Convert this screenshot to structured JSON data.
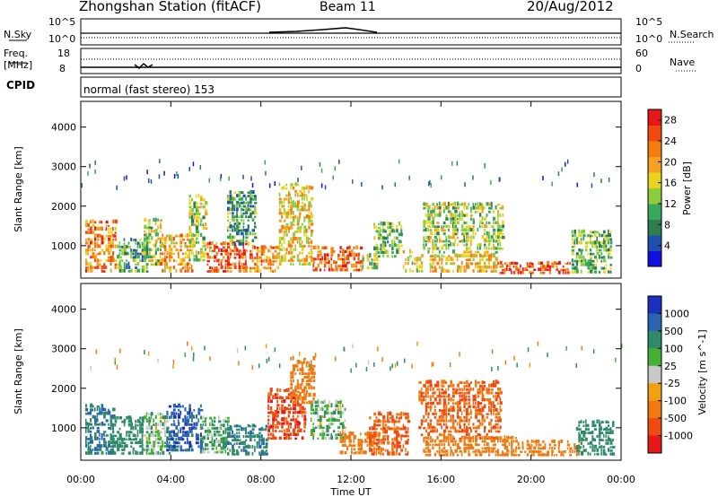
{
  "header": {
    "station": "Zhongshan Station (fitACF)",
    "beam": "Beam 11",
    "date": "20/Aug/2012"
  },
  "top_panels": {
    "nsky_label": "N.Sky",
    "nsky_ticks": [
      "10^5",
      "10^0"
    ],
    "nsearch_label": "N.Search",
    "nsearch_ticks": [
      "10^5",
      "10^0"
    ],
    "freq_label": "Freq.",
    "freq_unit": "[MHz]",
    "freq_ticks": [
      "18",
      "8"
    ],
    "nave_label": "Nave",
    "nave_ticks": [
      "60",
      "0"
    ],
    "cpid_label": "CPID",
    "cpid_text": "normal (fast stereo) 153"
  },
  "colors": {
    "power_scale": [
      "#1010e0",
      "#1f4fb0",
      "#2e7d4f",
      "#3aa85a",
      "#8ccd3c",
      "#e8d420",
      "#f5a020",
      "#f57d10",
      "#f04a10",
      "#e81818"
    ],
    "velocity_scale": [
      "#1c2fbf",
      "#2a66b0",
      "#2e8a68",
      "#44b035",
      "#c8c8c8",
      "#f0a010",
      "#f07a10",
      "#f04a10",
      "#e81818"
    ]
  },
  "chart_data": [
    {
      "type": "heatmap",
      "title": "",
      "xlabel": "Time UT",
      "ylabel": "Slant Range [km]",
      "x_ticks": [
        "00:00",
        "04:00",
        "08:00",
        "12:00",
        "16:00",
        "20:00",
        "00:00"
      ],
      "xlim": [
        0,
        24
      ],
      "y_ticks": [
        "1000",
        "2000",
        "3000",
        "4000"
      ],
      "ylim": [
        180,
        4650
      ],
      "colorbar": {
        "label": "Power [dB]",
        "ticks": [
          "4",
          "8",
          "12",
          "16",
          "20",
          "24",
          "28"
        ],
        "range": [
          0,
          30
        ]
      },
      "blobs": [
        {
          "t0": 0.2,
          "t1": 1.6,
          "r0": 320,
          "r1": 1650,
          "value": 22
        },
        {
          "t0": 1.6,
          "t1": 3.0,
          "r0": 320,
          "r1": 1200,
          "value": 10
        },
        {
          "t0": 2.8,
          "t1": 3.6,
          "r0": 400,
          "r1": 1700,
          "value": 14
        },
        {
          "t0": 3.5,
          "t1": 5.0,
          "r0": 320,
          "r1": 1300,
          "value": 20
        },
        {
          "t0": 4.8,
          "t1": 5.6,
          "r0": 600,
          "r1": 2300,
          "value": 14
        },
        {
          "t0": 5.6,
          "t1": 7.4,
          "r0": 320,
          "r1": 1100,
          "value": 24
        },
        {
          "t0": 6.5,
          "t1": 7.8,
          "r0": 1000,
          "r1": 2400,
          "value": 10
        },
        {
          "t0": 7.5,
          "t1": 8.8,
          "r0": 320,
          "r1": 1000,
          "value": 22
        },
        {
          "t0": 8.8,
          "t1": 10.3,
          "r0": 500,
          "r1": 2600,
          "value": 18
        },
        {
          "t0": 10.3,
          "t1": 12.5,
          "r0": 350,
          "r1": 1000,
          "value": 24
        },
        {
          "t0": 12.5,
          "t1": 13.2,
          "r0": 400,
          "r1": 800,
          "value": 14
        },
        {
          "t0": 13.0,
          "t1": 14.3,
          "r0": 700,
          "r1": 1600,
          "value": 12
        },
        {
          "t0": 14.3,
          "t1": 15.2,
          "r0": 320,
          "r1": 900,
          "value": 16
        },
        {
          "t0": 15.2,
          "t1": 18.8,
          "r0": 800,
          "r1": 2100,
          "value": 14
        },
        {
          "t0": 15.5,
          "t1": 18.5,
          "r0": 320,
          "r1": 800,
          "value": 18
        },
        {
          "t0": 18.5,
          "t1": 21.8,
          "r0": 280,
          "r1": 600,
          "value": 26
        },
        {
          "t0": 21.8,
          "t1": 23.6,
          "r0": 300,
          "r1": 1400,
          "value": 12
        }
      ]
    },
    {
      "type": "heatmap",
      "title": "",
      "xlabel": "Time UT",
      "ylabel": "Slant Range [km]",
      "x_ticks": [
        "00:00",
        "04:00",
        "08:00",
        "12:00",
        "16:00",
        "20:00",
        "00:00"
      ],
      "xlim": [
        0,
        24
      ],
      "y_ticks": [
        "1000",
        "2000",
        "3000",
        "4000"
      ],
      "ylim": [
        180,
        4650
      ],
      "colorbar": {
        "label": "Velocity [m s^-1]",
        "ticks": [
          "1000",
          "500",
          "100",
          "25",
          "-25",
          "-100",
          "-500",
          "-1000"
        ]
      },
      "blobs": [
        {
          "t0": 0.2,
          "t1": 1.5,
          "r0": 320,
          "r1": 1600,
          "value": 500
        },
        {
          "t0": 1.3,
          "t1": 2.8,
          "r0": 320,
          "r1": 1300,
          "value": 300
        },
        {
          "t0": 2.8,
          "t1": 4.0,
          "r0": 320,
          "r1": 1400,
          "value": 50
        },
        {
          "t0": 3.8,
          "t1": 5.4,
          "r0": 400,
          "r1": 1600,
          "value": 800
        },
        {
          "t0": 5.3,
          "t1": 6.6,
          "r0": 350,
          "r1": 1300,
          "value": 80
        },
        {
          "t0": 6.3,
          "t1": 8.3,
          "r0": 300,
          "r1": 1100,
          "value": 400
        },
        {
          "t0": 8.3,
          "t1": 10.0,
          "r0": 700,
          "r1": 2000,
          "value": -800
        },
        {
          "t0": 9.3,
          "t1": 10.4,
          "r0": 1600,
          "r1": 2800,
          "value": -200
        },
        {
          "t0": 10.2,
          "t1": 11.8,
          "r0": 700,
          "r1": 1700,
          "value": 50
        },
        {
          "t0": 11.5,
          "t1": 13.5,
          "r0": 330,
          "r1": 900,
          "value": -300
        },
        {
          "t0": 12.8,
          "t1": 14.6,
          "r0": 300,
          "r1": 1400,
          "value": -600
        },
        {
          "t0": 15.0,
          "t1": 18.7,
          "r0": 700,
          "r1": 2200,
          "value": -500
        },
        {
          "t0": 15.2,
          "t1": 19.5,
          "r0": 280,
          "r1": 800,
          "value": -300
        },
        {
          "t0": 19.5,
          "t1": 22.2,
          "r0": 280,
          "r1": 700,
          "value": -250
        },
        {
          "t0": 22.0,
          "t1": 23.7,
          "r0": 300,
          "r1": 1200,
          "value": 200
        }
      ]
    }
  ]
}
